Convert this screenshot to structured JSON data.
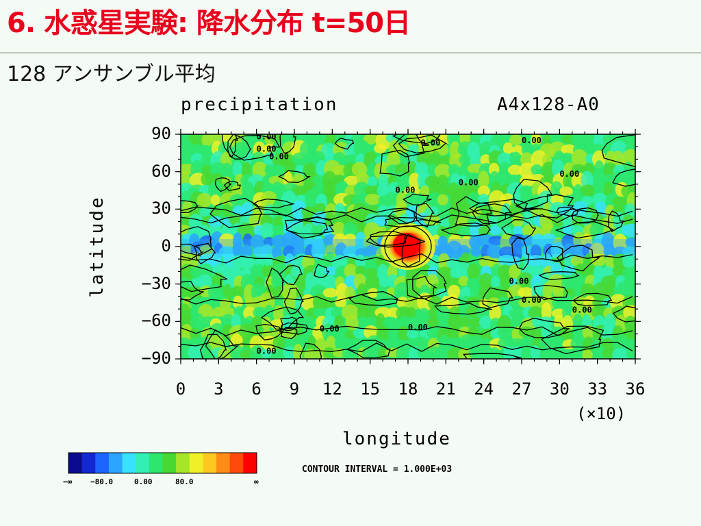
{
  "slide": {
    "title": "6. 水惑星実験: 降水分布 t=50日",
    "subtitle": "128 アンサンブル平均"
  },
  "chart_data": {
    "type": "heatmap",
    "variable": "precipitation",
    "experiment": "A4x128-A0",
    "xlabel": "longitude",
    "ylabel": "latitude",
    "x_multiplier": "(×10)",
    "xlim": [
      0,
      36
    ],
    "ylim": [
      -90,
      90
    ],
    "x_ticks": [
      "0",
      "3",
      "6",
      "9",
      "12",
      "15",
      "18",
      "21",
      "24",
      "27",
      "30",
      "33",
      "36"
    ],
    "y_ticks": [
      "90",
      "60",
      "30",
      "0",
      "−30",
      "−60",
      "−90"
    ],
    "contour_labels": [
      "0.00",
      "0.00",
      "0.00",
      "0.00",
      "0.00",
      "0.00",
      "0.00",
      "0.00",
      "0.00",
      "0.00",
      "0.00",
      "0.00",
      "0.00",
      "0.00"
    ],
    "contour_interval": "CONTOUR INTERVAL = 1.000E+03",
    "colorbar": {
      "colors": [
        "#0b0b8f",
        "#1428d2",
        "#1e64ff",
        "#2aa6ff",
        "#38e2ff",
        "#32f0b4",
        "#2ee66e",
        "#48d832",
        "#a6e628",
        "#f0f028",
        "#ffc81e",
        "#ff8c14",
        "#ff4a0c",
        "#ff0000"
      ],
      "labels": [
        "−∞",
        "−80.0",
        "0.00",
        "80.0",
        "∞"
      ]
    },
    "features": {
      "background_level": "near zero",
      "tropical_band": "enhanced precipitation near the equator",
      "max_region": {
        "longitude_x10": 18,
        "latitude": 0
      }
    }
  }
}
